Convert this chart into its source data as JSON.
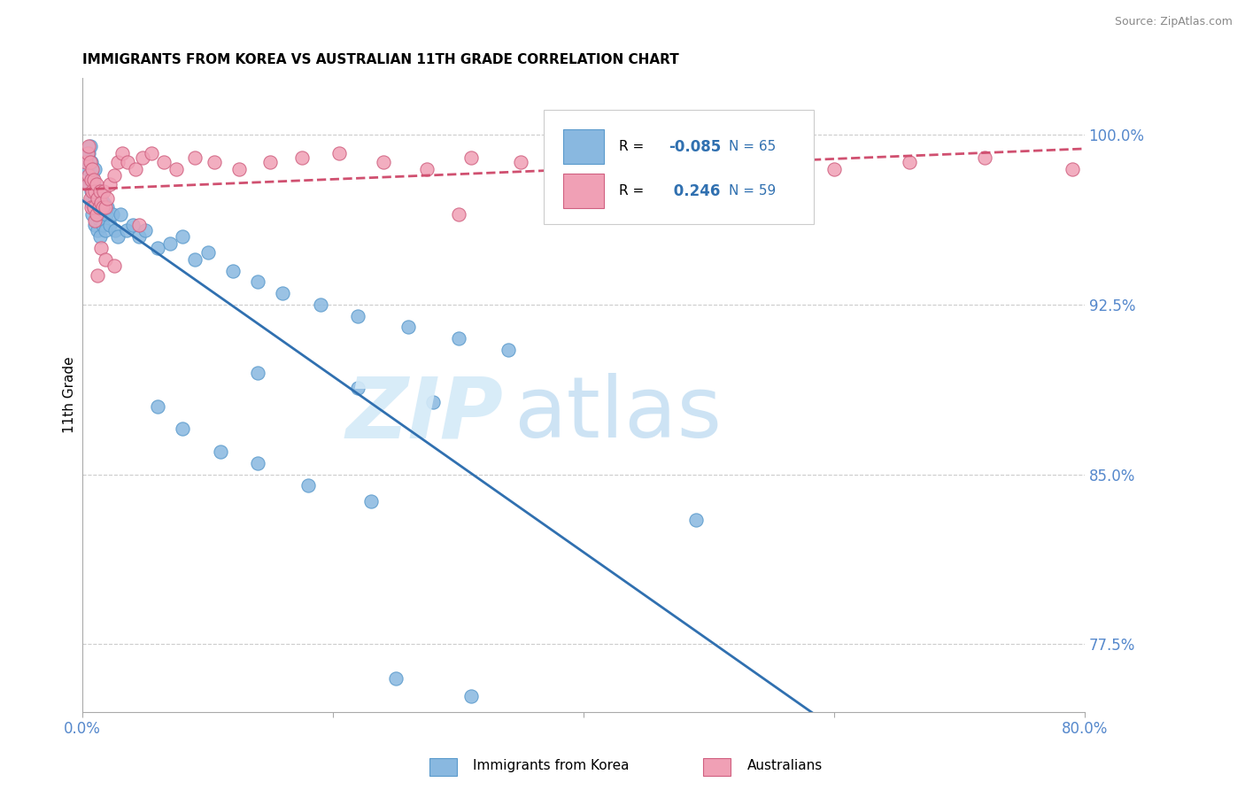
{
  "title": "IMMIGRANTS FROM KOREA VS AUSTRALIAN 11TH GRADE CORRELATION CHART",
  "source": "Source: ZipAtlas.com",
  "ylabel": "11th Grade",
  "legend_blue_label": "Immigrants from Korea",
  "legend_pink_label": "Australians",
  "xmin": 0.0,
  "xmax": 0.8,
  "ymin": 0.745,
  "ymax": 1.025,
  "yticks": [
    0.775,
    0.85,
    0.925,
    1.0
  ],
  "ytick_labels": [
    "77.5%",
    "85.0%",
    "92.5%",
    "100.0%"
  ],
  "xtick_labels": [
    "0.0%",
    "80.0%"
  ],
  "xtick_vals": [
    0.0,
    0.8
  ],
  "blue_color": "#89b8e0",
  "blue_edge": "#5a9acc",
  "pink_color": "#f0a0b5",
  "pink_edge": "#d06080",
  "blue_line_color": "#3070b0",
  "pink_line_color": "#d05070",
  "tick_color": "#5588cc",
  "grid_color": "#cccccc",
  "blue_R": -0.085,
  "blue_N": 65,
  "pink_R": 0.246,
  "pink_N": 59,
  "blue_scatter_x": [
    0.003,
    0.004,
    0.005,
    0.005,
    0.006,
    0.006,
    0.007,
    0.007,
    0.007,
    0.008,
    0.008,
    0.008,
    0.009,
    0.009,
    0.01,
    0.01,
    0.01,
    0.011,
    0.011,
    0.012,
    0.012,
    0.013,
    0.013,
    0.014,
    0.014,
    0.015,
    0.016,
    0.017,
    0.018,
    0.019,
    0.02,
    0.022,
    0.024,
    0.026,
    0.028,
    0.03,
    0.035,
    0.04,
    0.045,
    0.05,
    0.06,
    0.07,
    0.08,
    0.09,
    0.1,
    0.12,
    0.14,
    0.16,
    0.19,
    0.22,
    0.26,
    0.3,
    0.34,
    0.06,
    0.08,
    0.11,
    0.14,
    0.18,
    0.23,
    0.49,
    0.14,
    0.22,
    0.28,
    0.25,
    0.31
  ],
  "blue_scatter_y": [
    0.99,
    0.985,
    0.992,
    0.978,
    0.995,
    0.98,
    0.988,
    0.975,
    0.97,
    0.982,
    0.972,
    0.965,
    0.978,
    0.968,
    0.985,
    0.972,
    0.96,
    0.975,
    0.962,
    0.97,
    0.958,
    0.975,
    0.963,
    0.968,
    0.955,
    0.972,
    0.96,
    0.97,
    0.958,
    0.965,
    0.968,
    0.96,
    0.965,
    0.958,
    0.955,
    0.965,
    0.958,
    0.96,
    0.955,
    0.958,
    0.95,
    0.952,
    0.955,
    0.945,
    0.948,
    0.94,
    0.935,
    0.93,
    0.925,
    0.92,
    0.915,
    0.91,
    0.905,
    0.88,
    0.87,
    0.86,
    0.855,
    0.845,
    0.838,
    0.83,
    0.895,
    0.888,
    0.882,
    0.76,
    0.752
  ],
  "pink_scatter_x": [
    0.003,
    0.004,
    0.004,
    0.005,
    0.005,
    0.006,
    0.006,
    0.007,
    0.007,
    0.008,
    0.008,
    0.009,
    0.009,
    0.01,
    0.01,
    0.011,
    0.011,
    0.012,
    0.013,
    0.014,
    0.015,
    0.016,
    0.017,
    0.018,
    0.02,
    0.022,
    0.025,
    0.028,
    0.032,
    0.036,
    0.042,
    0.048,
    0.055,
    0.065,
    0.075,
    0.09,
    0.105,
    0.125,
    0.15,
    0.175,
    0.205,
    0.24,
    0.275,
    0.31,
    0.35,
    0.395,
    0.44,
    0.49,
    0.54,
    0.6,
    0.66,
    0.72,
    0.79,
    0.3,
    0.045,
    0.015,
    0.018,
    0.012,
    0.025
  ],
  "pink_scatter_y": [
    0.988,
    0.992,
    0.978,
    0.995,
    0.982,
    0.988,
    0.972,
    0.98,
    0.968,
    0.985,
    0.975,
    0.98,
    0.968,
    0.975,
    0.962,
    0.978,
    0.965,
    0.972,
    0.968,
    0.975,
    0.97,
    0.968,
    0.975,
    0.968,
    0.972,
    0.978,
    0.982,
    0.988,
    0.992,
    0.988,
    0.985,
    0.99,
    0.992,
    0.988,
    0.985,
    0.99,
    0.988,
    0.985,
    0.988,
    0.99,
    0.992,
    0.988,
    0.985,
    0.99,
    0.988,
    0.985,
    0.988,
    0.99,
    0.988,
    0.985,
    0.988,
    0.99,
    0.985,
    0.965,
    0.96,
    0.95,
    0.945,
    0.938,
    0.942
  ]
}
